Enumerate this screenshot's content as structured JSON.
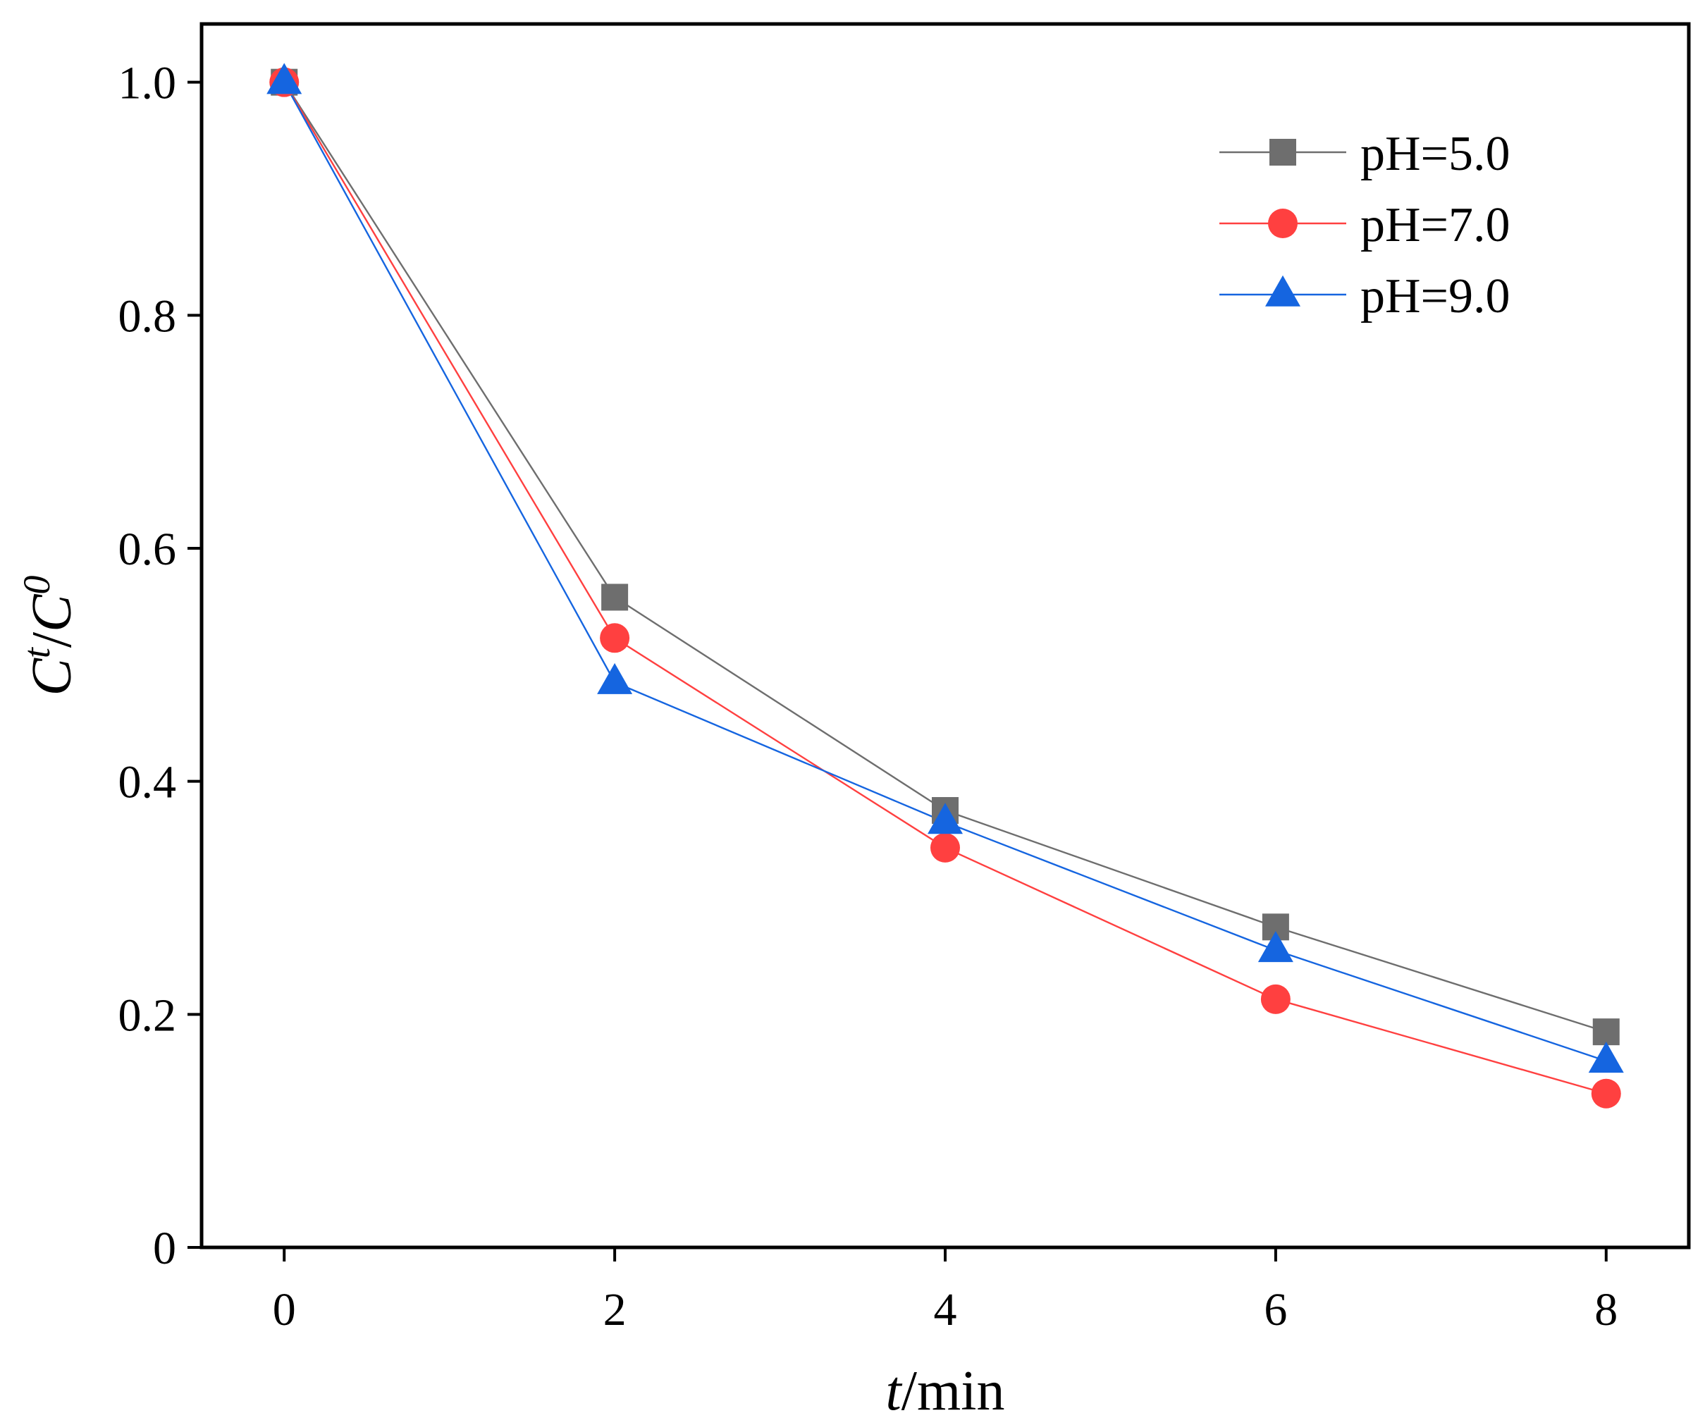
{
  "chart_data": {
    "type": "line",
    "title": "",
    "xlabel": {
      "var": "t",
      "unit": "/min"
    },
    "ylabel": {
      "numerator": "C",
      "numerator_sup": "t",
      "slash": "/",
      "denominator": "C",
      "denominator_sup": "0"
    },
    "xlim": [
      -0.5,
      8.5
    ],
    "ylim": [
      0,
      1.05
    ],
    "x_ticks": [
      0,
      2,
      4,
      6,
      8
    ],
    "x_tick_labels": [
      "0",
      "2",
      "4",
      "6",
      "8"
    ],
    "y_ticks": [
      0,
      0.2,
      0.4,
      0.6,
      0.8,
      1.0
    ],
    "y_tick_labels": [
      "0",
      "0.2",
      "0.4",
      "0.6",
      "0.8",
      "1.0"
    ],
    "grid": false,
    "legend_position": "top-right",
    "x": [
      0,
      2,
      4,
      6,
      8
    ],
    "series": [
      {
        "name": "pH=5.0",
        "marker": "square",
        "color": "#6e6e6e",
        "values": [
          1.0,
          0.558,
          0.375,
          0.275,
          0.185
        ]
      },
      {
        "name": "pH=7.0",
        "marker": "circle",
        "color": "#ff4040",
        "values": [
          1.0,
          0.523,
          0.343,
          0.213,
          0.132
        ]
      },
      {
        "name": "pH=9.0",
        "marker": "triangle",
        "color": "#1565e0",
        "values": [
          1.0,
          0.485,
          0.365,
          0.255,
          0.16
        ]
      }
    ]
  }
}
